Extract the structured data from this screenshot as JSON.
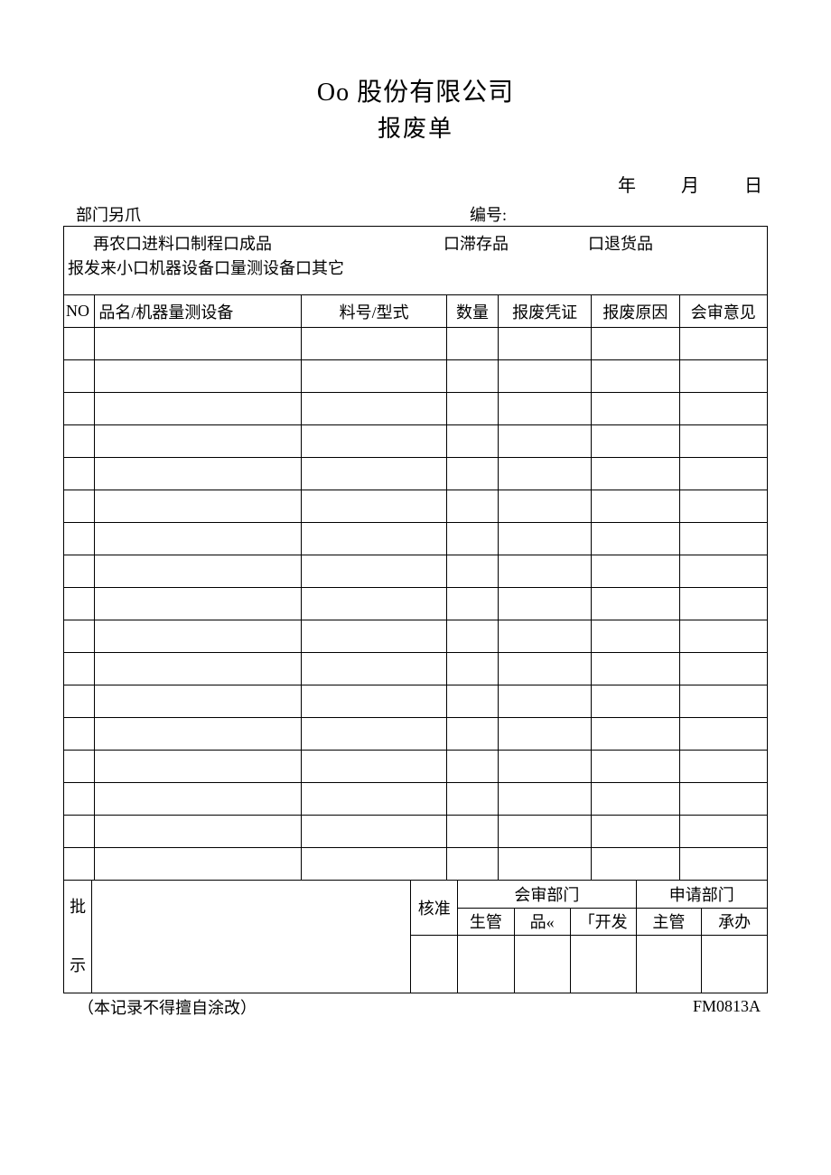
{
  "header": {
    "company": "Oo 股份有限公司",
    "form_name": "报废单"
  },
  "date": {
    "year_label": "年",
    "month_label": "月",
    "day_label": "日"
  },
  "meta": {
    "dept_label": "部门另爪",
    "serial_label": "编号:"
  },
  "source": {
    "line1_prefix": "再农",
    "opt_incoming": "口进料",
    "opt_process": "口制程",
    "opt_finished": "口成品",
    "opt_stock": "口滞存品",
    "opt_return": "口退货品",
    "line2_prefix": "报发来小",
    "opt_machine": "口机器设备",
    "opt_measure": "口量测设备",
    "opt_other": "口其它"
  },
  "columns": {
    "no": "NO",
    "name": "品名/机器量测设备",
    "part": "料号/型式",
    "qty": "数量",
    "cert": "报废凭证",
    "reason": "报废原因",
    "opinion": "会审意见"
  },
  "data_row_count": 17,
  "approval": {
    "pishi_top": "批",
    "pishi_bottom": "示",
    "hezhun": "核准",
    "review_dept": "会审部门",
    "apply_dept": "申请部门",
    "shengguan": "生管",
    "pin": "品«",
    "kaifa": "「开发",
    "zhuguan": "主管",
    "chengban": "承办"
  },
  "footer": {
    "note": "（本记录不得擅自涂改）",
    "form_no": "FM0813A"
  },
  "style": {
    "background": "#ffffff",
    "border_color": "#000000",
    "text_color": "#000000",
    "title_fontsize": 28,
    "body_fontsize": 18
  }
}
